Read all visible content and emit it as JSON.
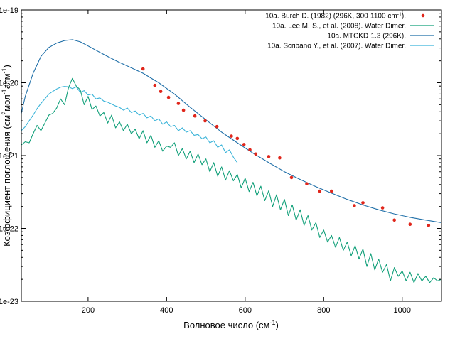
{
  "chart_data": {
    "type": "line",
    "xlabel_main": "Волновое число (см",
    "xlabel_sup": "-1",
    "xlabel_end": ")",
    "ylabel_parts": [
      {
        "t": "Коэффициент поглощения (см"
      },
      {
        "t": "2",
        "sup": true
      },
      {
        "t": "мол"
      },
      {
        "t": "-1",
        "sup": true
      },
      {
        "t": "атм"
      },
      {
        "t": "-1",
        "sup": true
      },
      {
        "t": ")"
      }
    ],
    "xlim": [
      30,
      1100
    ],
    "ylim": [
      1e-23,
      1e-19
    ],
    "yscale": "log",
    "xticks": [
      200,
      400,
      600,
      800,
      1000
    ],
    "yticks": [
      {
        "v": 1e-23,
        "label": "1e-23"
      },
      {
        "v": 1e-22,
        "label": "1e-22"
      },
      {
        "v": 1e-21,
        "label": "1e-21"
      },
      {
        "v": 1e-20,
        "label": "1e-20"
      },
      {
        "v": 1e-19,
        "label": "1e-19"
      }
    ],
    "grid": false,
    "legend_position": "top-right",
    "series": [
      {
        "name": "10a. Burch D. (1982) (296K, 300-1100 cm",
        "name_sup": "-1",
        "name_end": ").",
        "kind": "scatter",
        "color": "#e0261b",
        "x": [
          340,
          370,
          385,
          405,
          430,
          443,
          472,
          498,
          528,
          565,
          580,
          597,
          612,
          627,
          660,
          688,
          718,
          757,
          790,
          820,
          878,
          900,
          950,
          980,
          1020,
          1067
        ],
        "y": [
          1.55e-20,
          9.2e-21,
          7.6e-21,
          6.3e-21,
          5.2e-21,
          4.2e-21,
          3.5e-21,
          3e-21,
          2.5e-21,
          1.85e-21,
          1.72e-21,
          1.42e-21,
          1.2e-21,
          1.05e-21,
          9.7e-22,
          9.3e-22,
          5e-22,
          4.1e-22,
          3.25e-22,
          3.25e-22,
          2.05e-22,
          2.25e-22,
          1.92e-22,
          1.3e-22,
          1.14e-22,
          1.1e-22
        ]
      },
      {
        "name": "10a. Lee M.-S., et al. (2008). Water Dimer.",
        "kind": "line",
        "color": "#12a07a",
        "x": [
          30,
          40,
          50,
          60,
          70,
          80,
          90,
          100,
          110,
          120,
          130,
          140,
          150,
          160,
          170,
          180,
          190,
          200,
          210,
          220,
          230,
          240,
          250,
          260,
          270,
          280,
          290,
          300,
          310,
          320,
          330,
          340,
          350,
          360,
          370,
          380,
          390,
          400,
          410,
          420,
          430,
          440,
          450,
          460,
          470,
          480,
          490,
          500,
          510,
          520,
          530,
          540,
          550,
          560,
          570,
          580,
          590,
          600,
          610,
          620,
          630,
          640,
          650,
          660,
          670,
          680,
          690,
          700,
          710,
          720,
          730,
          740,
          750,
          760,
          770,
          780,
          790,
          800,
          810,
          820,
          830,
          840,
          850,
          860,
          870,
          880,
          890,
          900,
          910,
          920,
          930,
          940,
          950,
          960,
          970,
          980,
          990,
          1000,
          1010,
          1020,
          1030,
          1040,
          1050,
          1060,
          1070,
          1080,
          1090,
          1100
        ],
        "y": [
          1.4e-21,
          1.55e-21,
          1.5e-21,
          2e-21,
          2.6e-21,
          2.2e-21,
          2.8e-21,
          3.6e-21,
          3.8e-21,
          4.5e-21,
          6e-21,
          5e-21,
          8.5e-21,
          1.15e-20,
          9e-21,
          8e-21,
          5e-21,
          6.5e-21,
          4.3e-21,
          4.8e-21,
          3.5e-21,
          3.9e-21,
          2.8e-21,
          3.6e-21,
          2.4e-21,
          2.9e-21,
          2.2e-21,
          2.7e-21,
          2e-21,
          2.3e-21,
          1.7e-21,
          2.2e-21,
          1.5e-21,
          1.9e-21,
          1.3e-21,
          1.6e-21,
          1.15e-21,
          1.35e-21,
          1.3e-21,
          1.5e-21,
          1e-21,
          1.25e-21,
          9e-22,
          1.15e-21,
          8e-22,
          1.05e-21,
          7.5e-22,
          9e-22,
          6e-22,
          8e-22,
          5.2e-22,
          7e-22,
          4.6e-22,
          6.2e-22,
          4.5e-22,
          5.5e-22,
          3.6e-22,
          4.9e-22,
          3.2e-22,
          4.3e-22,
          2.8e-22,
          3.8e-22,
          2.4e-22,
          3.3e-22,
          2e-22,
          2.9e-22,
          1.8e-22,
          2.5e-22,
          1.5e-22,
          2.1e-22,
          1.3e-22,
          1.8e-22,
          1.1e-22,
          1.5e-22,
          9.5e-23,
          1.2e-22,
          7.5e-23,
          9.5e-23,
          6.5e-23,
          8e-23,
          5.5e-23,
          7.5e-23,
          5e-23,
          6.5e-23,
          4.2e-23,
          5.8e-23,
          3.8e-23,
          5.2e-23,
          3e-23,
          4.5e-23,
          2.7e-23,
          3.8e-23,
          2.5e-23,
          3.2e-23,
          1.9e-23,
          2.9e-23,
          2.2e-23,
          2.6e-23,
          1.9e-23,
          2.5e-23,
          1.8e-23,
          2.4e-23,
          1.9e-23,
          2.2e-23,
          1.8e-23,
          2.1e-23,
          1.9e-23,
          2e-23
        ]
      },
      {
        "name": "10a. MTCKD-1.3 (296K).",
        "kind": "line",
        "color": "#1f6fa8",
        "x": [
          30,
          40,
          60,
          80,
          100,
          120,
          140,
          160,
          180,
          200,
          220,
          240,
          260,
          280,
          300,
          340,
          380,
          420,
          460,
          500,
          540,
          580,
          620,
          660,
          700,
          740,
          780,
          820,
          860,
          900,
          940,
          980,
          1020,
          1060,
          1100
        ],
        "y": [
          3.8e-21,
          6.5e-21,
          1.35e-20,
          2.3e-20,
          3.05e-20,
          3.5e-20,
          3.8e-20,
          3.9e-20,
          3.65e-20,
          3.2e-20,
          2.8e-20,
          2.45e-20,
          2.15e-20,
          1.9e-20,
          1.7e-20,
          1.35e-20,
          1e-20,
          7e-21,
          4.6e-21,
          3.1e-21,
          2.1e-21,
          1.5e-21,
          1.08e-21,
          8e-22,
          6e-22,
          4.7e-22,
          3.75e-22,
          3.05e-22,
          2.5e-22,
          2.1e-22,
          1.8e-22,
          1.58e-22,
          1.42e-22,
          1.3e-22,
          1.2e-22
        ]
      },
      {
        "name": "10a. Scribano Y., et al. (2007). Water Dimer.",
        "kind": "line",
        "color": "#3bb4d9",
        "x": [
          30,
          40,
          50,
          60,
          70,
          80,
          90,
          100,
          110,
          120,
          130,
          140,
          150,
          160,
          170,
          180,
          190,
          200,
          210,
          220,
          230,
          240,
          250,
          260,
          270,
          280,
          290,
          300,
          310,
          320,
          330,
          340,
          350,
          360,
          370,
          380,
          390,
          400,
          410,
          420,
          430,
          440,
          450,
          460,
          470,
          480,
          490,
          500,
          510,
          520,
          530,
          540,
          550,
          560,
          570,
          580
        ],
        "y": [
          2.2e-21,
          2.5e-21,
          3e-21,
          3.6e-21,
          4.4e-21,
          5.2e-21,
          6e-21,
          7e-21,
          7.6e-21,
          8.2e-21,
          8.7e-21,
          8.9e-21,
          8.8e-21,
          8.3e-21,
          8.8e-21,
          7.4e-21,
          7.8e-21,
          6.8e-21,
          7e-21,
          6e-21,
          6.2e-21,
          5.6e-21,
          5.4e-21,
          5.1e-21,
          4.8e-21,
          4.6e-21,
          4.2e-21,
          4.5e-21,
          3.9e-21,
          4.1e-21,
          3.6e-21,
          3.8e-21,
          3.3e-21,
          3.5e-21,
          3e-21,
          3.2e-21,
          2.7e-21,
          2.9e-21,
          2.5e-21,
          2.6e-21,
          2.2e-21,
          2.4e-21,
          2.1e-21,
          2.2e-21,
          1.9e-21,
          1.95e-21,
          1.7e-21,
          1.8e-21,
          1.5e-21,
          1.6e-21,
          1.3e-21,
          1.4e-21,
          1.1e-21,
          1.2e-21,
          9.5e-22,
          8e-22
        ]
      }
    ]
  }
}
